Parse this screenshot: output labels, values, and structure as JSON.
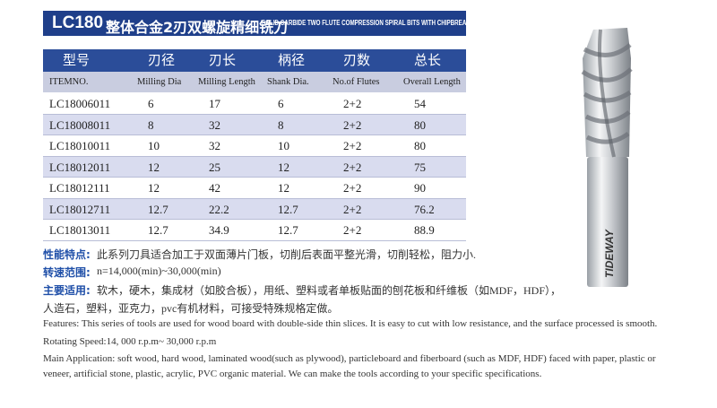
{
  "header": {
    "code": "LC180",
    "title_cn": "整体合金2刃双螺旋精细铣刀",
    "title_en": "SOLID CARBIDE TWO FLUTE COMPRESSION SPIRAL BITS WITH CHIPBREAKER"
  },
  "table": {
    "header_cn": [
      "型号",
      "刃径",
      "刃长",
      "柄径",
      "刃数",
      "总长"
    ],
    "header_en": [
      "ITEMNO.",
      "Milling Dia",
      "Milling Length",
      "Shank Dia.",
      "No.of Flutes",
      "Overall Length"
    ],
    "rows": [
      [
        "LC18006011",
        "6",
        "17",
        "6",
        "2+2",
        "54"
      ],
      [
        "LC18008011",
        "8",
        "32",
        "8",
        "2+2",
        "80"
      ],
      [
        "LC18010011",
        "10",
        "32",
        "10",
        "2+2",
        "80"
      ],
      [
        "LC18012011",
        "12",
        "25",
        "12",
        "2+2",
        "75"
      ],
      [
        "LC18012111",
        "12",
        "42",
        "12",
        "2+2",
        "90"
      ],
      [
        "LC18012711",
        "12.7",
        "22.2",
        "12.7",
        "2+2",
        "76.2"
      ],
      [
        "LC18013011",
        "12.7",
        "34.9",
        "12.7",
        "2+2",
        "88.9"
      ]
    ]
  },
  "notes_cn": [
    {
      "label": "性能特点:",
      "lines": [
        "此系列刀具适合加工于双面薄片门板，切削后表面平整光滑，切削轻松，阻力小."
      ]
    },
    {
      "label": "转速范围:",
      "lines": [
        "n=14,000(min)~30,000(min)"
      ]
    },
    {
      "label": "主要适用:",
      "lines": [
        "软木，硬木，集成材（如胶合板），用纸、塑料或者单板贴面的刨花板和纤维板（如MDF，HDF），",
        "人造石，塑料，亚克力，pvc有机材料，可接受特殊规格定做。"
      ]
    }
  ],
  "notes_en": [
    "Features: This series of tools are used for wood board with double-side thin slices. It is easy to cut with low resistance, and the surface processed is smooth.",
    "Rotating Speed:14, 000 r.p.m~ 30,000 r.p.m",
    "Main Application: soft wood, hard wood, laminated wood(such as plywood), particleboard and fiberboard (such as MDF, HDF) faced with paper, plastic or",
    "veneer, artificial stone, plastic, acrylic, PVC organic material. We can make the tools according to your specific specifications."
  ],
  "tool": {
    "brand": "TIDEWAY"
  }
}
